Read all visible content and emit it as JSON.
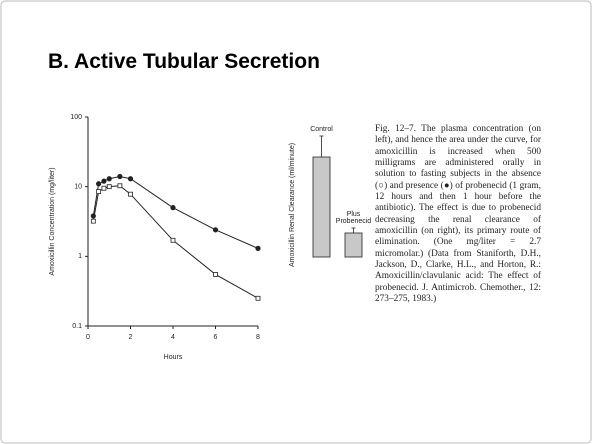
{
  "slide": {
    "title": "B. Active Tubular Secretion",
    "caption": "Fig. 12–7. The plasma concentration (on left), and hence the area under the curve, for amoxicillin is increased when 500 milligrams are administered orally in solution to fasting subjects in the absence (○) and presence (●) of probenecid (1 gram, 12 hours and then 1 hour before the antibiotic). The effect is due to probenecid decreasing the renal clearance of amoxicillin (on right), its primary route of elimination. (One mg/liter = 2.7 micromolar.) (Data from Staniforth, D.H., Jackson, D., Clarke, H.L., and Horton, R.: Amoxicillin/clavulanic acid: The effect of probenecid. J. Antimicrob. Chemother., 12: 273–275, 1983.)"
  },
  "chart_data": [
    {
      "type": "line",
      "xlabel": "Hours",
      "ylabel": "Amoxicillin Concentration (mg/liter)",
      "x": [
        0.25,
        0.5,
        0.75,
        1,
        1.5,
        2,
        4,
        6,
        8
      ],
      "series": [
        {
          "color": "#222222",
          "marker": "circle",
          "values": [
            3.8,
            11,
            12,
            13,
            14,
            13,
            5,
            2.4,
            1.3
          ]
        },
        {
          "color": "#ffffff",
          "marker": "square",
          "values": [
            3.2,
            8.5,
            9.5,
            10,
            10.3,
            7.8,
            1.7,
            0.55,
            0.25
          ]
        }
      ],
      "xlim": [
        0,
        8
      ],
      "xticks": [
        0,
        2,
        4,
        6,
        8
      ],
      "ylim": [
        0.1,
        100
      ],
      "yticks": [
        0.1,
        1,
        10,
        100
      ],
      "log_y": true
    },
    {
      "type": "bar",
      "ylabel": "Amoxicillin Renal Clearance (ml/minute)",
      "categories": [
        "Control",
        "Plus Probenecid"
      ],
      "values": [
        100,
        24
      ],
      "errors": [
        21,
        5
      ],
      "color": "#c8c8c8"
    }
  ]
}
